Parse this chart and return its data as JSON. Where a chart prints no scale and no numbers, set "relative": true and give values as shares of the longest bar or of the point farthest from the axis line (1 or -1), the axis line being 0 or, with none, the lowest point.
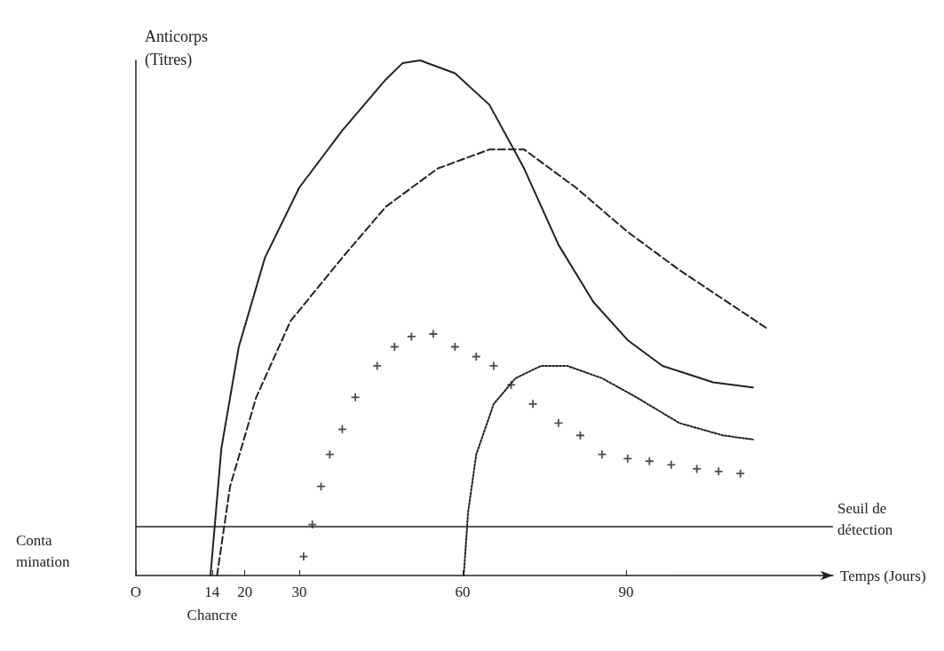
{
  "chart_data": {
    "type": "line",
    "relative": true,
    "xlabel": "Temps (Jours)",
    "ylabel": "Anticorps\n(Titres)",
    "xlim": [
      0,
      128
    ],
    "xticks": [
      {
        "value": 0,
        "label": "O"
      },
      14,
      20,
      30,
      60,
      90
    ],
    "grid": false,
    "tick_labels": "x",
    "ref_lines": [
      {
        "axis": "y",
        "value": 0.096,
        "label": "Seuil de\ndétection"
      }
    ],
    "annotations": [
      "Conta\nmination",
      "Chancre"
    ],
    "series": [
      {
        "line_style": "solid",
        "marker": "none",
        "color": "#222222",
        "x": [
          13.7,
          15.7,
          18.9,
          23.7,
          30,
          37.9,
          45.9,
          49,
          52.2,
          58.6,
          64.9,
          71.3,
          77.6,
          84,
          90.3,
          96.7,
          106,
          113.3
        ],
        "values": [
          0,
          0.247,
          0.444,
          0.617,
          0.753,
          0.864,
          0.963,
          0.995,
          1,
          0.975,
          0.914,
          0.79,
          0.642,
          0.531,
          0.457,
          0.407,
          0.375,
          0.365
        ]
      },
      {
        "line_style": "dashed",
        "marker": "none",
        "color": "#222222",
        "x": [
          14.9,
          17.3,
          22.1,
          28.4,
          37.9,
          45.9,
          55.4,
          64.9,
          71.3,
          80.8,
          90.3,
          99.8,
          115.7
        ],
        "values": [
          0,
          0.173,
          0.346,
          0.494,
          0.617,
          0.716,
          0.79,
          0.827,
          0.827,
          0.753,
          0.667,
          0.593,
          0.481
        ]
      },
      {
        "type": "scatter",
        "marker": "cross",
        "color": "#222222",
        "x": [
          30.8,
          32.4,
          34,
          35.6,
          37.9,
          40.3,
          44.3,
          47.5,
          50.6,
          54.6,
          58.6,
          62.5,
          65.7,
          68.9,
          72.9,
          77.6,
          81.6,
          85.6,
          90.3,
          94.3,
          98.3,
          103,
          107,
          111
        ],
        "values": [
          0.037,
          0.099,
          0.173,
          0.235,
          0.284,
          0.346,
          0.407,
          0.444,
          0.464,
          0.469,
          0.444,
          0.425,
          0.407,
          0.37,
          0.333,
          0.296,
          0.272,
          0.235,
          0.227,
          0.222,
          0.215,
          0.207,
          0.202,
          0.198
        ]
      },
      {
        "line_style": "dotted",
        "marker": "none",
        "color": "#222222",
        "x": [
          60.2,
          61,
          62.5,
          65.7,
          69.7,
          74.4,
          79.2,
          85.6,
          91.9,
          99.8,
          107.8,
          113.3
        ],
        "values": [
          0,
          0.123,
          0.235,
          0.333,
          0.383,
          0.407,
          0.407,
          0.383,
          0.346,
          0.296,
          0.272,
          0.264
        ]
      }
    ]
  }
}
